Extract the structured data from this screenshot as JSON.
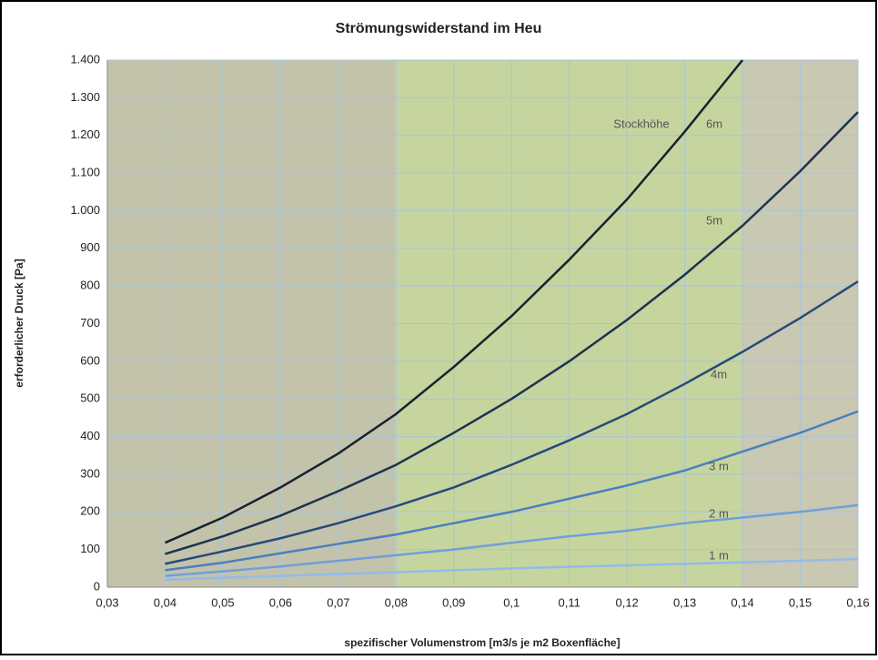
{
  "chart_data": {
    "type": "line",
    "title": "Strömungswiderstand im Heu",
    "x_label": "spezifischer Volumenstrom [m3/s je m2 Boxenfläche]",
    "y_label": "erforderlicher Druck [Pa]",
    "annotation": "Stockhöhe",
    "x": [
      0.04,
      0.05,
      0.06,
      0.07,
      0.08,
      0.09,
      0.1,
      0.11,
      0.12,
      0.13,
      0.14,
      0.15,
      0.16
    ],
    "series": [
      {
        "name": "6m",
        "color": "#16222f",
        "values": [
          118,
          185,
          265,
          355,
          460,
          585,
          720,
          870,
          1030,
          1210,
          1400,
          null,
          null
        ]
      },
      {
        "name": "5m",
        "color": "#1d3350",
        "values": [
          88,
          135,
          190,
          255,
          325,
          410,
          500,
          600,
          710,
          830,
          960,
          1105,
          1262
        ]
      },
      {
        "name": "4m",
        "color": "#28497a",
        "values": [
          62,
          95,
          130,
          170,
          215,
          265,
          325,
          390,
          460,
          540,
          625,
          715,
          812
        ]
      },
      {
        "name": "3 m",
        "color": "#4a7fc0",
        "values": [
          45,
          65,
          90,
          115,
          140,
          170,
          200,
          235,
          270,
          310,
          360,
          410,
          467
        ]
      },
      {
        "name": "2 m",
        "color": "#6f9fdc",
        "values": [
          30,
          42,
          55,
          70,
          85,
          100,
          118,
          135,
          150,
          170,
          185,
          200,
          218
        ]
      },
      {
        "name": "1 m",
        "color": "#93bbe8",
        "values": [
          20,
          25,
          30,
          35,
          40,
          45,
          50,
          54,
          58,
          62,
          66,
          70,
          75
        ]
      }
    ],
    "xlim": [
      0.03,
      0.16
    ],
    "xticks": [
      {
        "value": 0.03,
        "label": "0,03"
      },
      {
        "value": 0.04,
        "label": "0,04"
      },
      {
        "value": 0.05,
        "label": "0,05"
      },
      {
        "value": 0.06,
        "label": "0,06"
      },
      {
        "value": 0.07,
        "label": "0,07"
      },
      {
        "value": 0.08,
        "label": "0,08"
      },
      {
        "value": 0.09,
        "label": "0,09"
      },
      {
        "value": 0.1,
        "label": "0,1"
      },
      {
        "value": 0.11,
        "label": "0,11"
      },
      {
        "value": 0.12,
        "label": "0,12"
      },
      {
        "value": 0.13,
        "label": "0,13"
      },
      {
        "value": 0.14,
        "label": "0,14"
      },
      {
        "value": 0.15,
        "label": "0,15"
      },
      {
        "value": 0.16,
        "label": "0,16"
      }
    ],
    "ylim": [
      0,
      1400
    ],
    "yticks": [
      0,
      100,
      200,
      300,
      400,
      500,
      600,
      700,
      800,
      900,
      {
        "value": 1000,
        "label": "1.000"
      },
      {
        "value": 1100,
        "label": "1.100"
      },
      {
        "value": 1200,
        "label": "1.200"
      },
      {
        "value": 1300,
        "label": "1.300"
      },
      {
        "value": 1400,
        "label": "1.400"
      }
    ],
    "grid": true
  }
}
